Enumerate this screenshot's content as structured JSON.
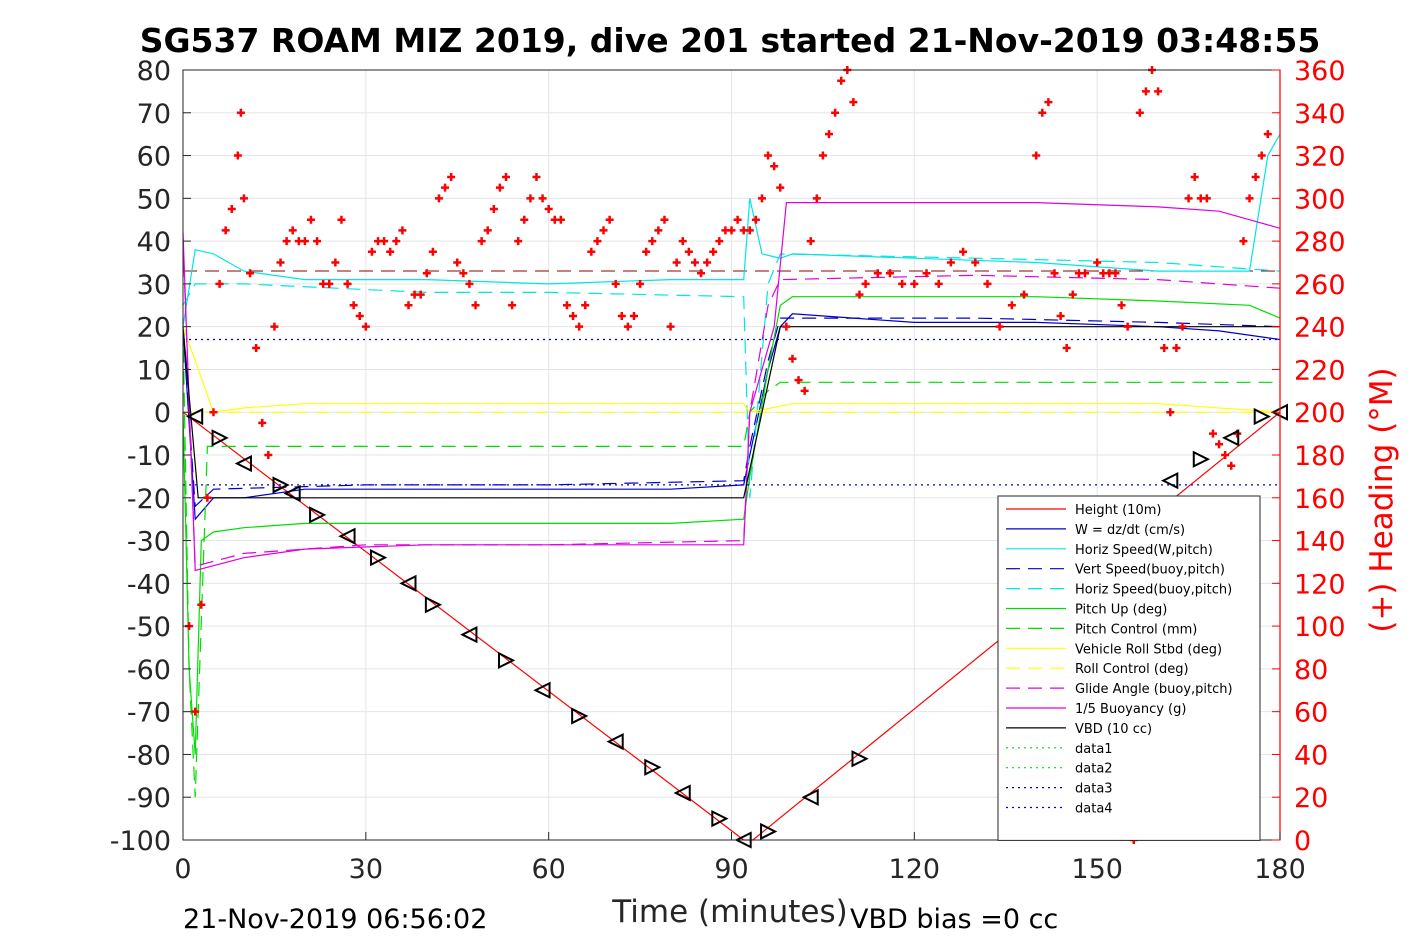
{
  "chart_data": {
    "type": "line",
    "title": "SG537 ROAM MIZ 2019, dive 201 started 21-Nov-2019 03:48:55",
    "xlabel": "Time (minutes)",
    "ylabel": "",
    "ylabel_right": "(+) Heading (°M)",
    "xlim": [
      0,
      180
    ],
    "ylim": [
      -100,
      80
    ],
    "ylim_right": [
      0,
      360
    ],
    "xticks": [
      "0",
      "30",
      "60",
      "90",
      "120",
      "150",
      "180"
    ],
    "yticks": [
      "80",
      "70",
      "60",
      "50",
      "40",
      "30",
      "20",
      "10",
      "0",
      "-10",
      "-20",
      "-30",
      "-40",
      "-50",
      "-60",
      "-70",
      "-80",
      "-90",
      "-100"
    ],
    "yticks_right": [
      "360",
      "340",
      "320",
      "300",
      "280",
      "260",
      "240",
      "220",
      "200",
      "180",
      "160",
      "140",
      "120",
      "100",
      "80",
      "60",
      "40",
      "20",
      "0"
    ],
    "grid": true,
    "legend_position": "lower-right",
    "footer_left": "21-Nov-2019 06:56:02",
    "footer_right": "VBD bias =0 cc",
    "colors": {
      "height": "#ff0000",
      "w": "#0000cc",
      "horiz": "#00e5e5",
      "pitch": "#00dd00",
      "roll": "#ffff00",
      "glide": "#e000e0",
      "vbd": "#000000",
      "heading": "#ff0000"
    },
    "series": [
      {
        "name": "Height (10m)",
        "style": "solid",
        "color": "#ff0000",
        "x": [
          0,
          92,
          93.5,
          180
        ],
        "y": [
          0,
          -100,
          -100,
          0
        ]
      },
      {
        "name": "W = dz/dt (cm/s)",
        "style": "solid",
        "color": "#0000cc",
        "x": [
          0,
          2,
          5,
          10,
          20,
          40,
          60,
          80,
          92,
          93,
          96,
          98,
          100,
          110,
          120,
          140,
          160,
          170,
          180
        ],
        "y": [
          20,
          -25,
          -20,
          -20,
          -18,
          -18,
          -18,
          -18,
          -17,
          -10,
          10,
          20,
          23,
          22,
          21,
          21,
          20,
          19,
          17
        ]
      },
      {
        "name": "Horiz Speed(W,pitch)",
        "style": "solid",
        "color": "#00e5e5",
        "x": [
          0,
          2,
          5,
          10,
          20,
          40,
          60,
          80,
          92,
          93,
          95,
          98,
          100,
          120,
          140,
          160,
          175,
          178,
          180
        ],
        "y": [
          20,
          38,
          37,
          33,
          31,
          31,
          30,
          31,
          31,
          50,
          37,
          36,
          37,
          36,
          35,
          33,
          33,
          60,
          65
        ]
      },
      {
        "name": "Vert Speed(buoy,pitch)",
        "style": "dash",
        "color": "#0000cc",
        "x": [
          0,
          2,
          5,
          30,
          60,
          92,
          93,
          96,
          98,
          130,
          160,
          180
        ],
        "y": [
          20,
          -22,
          -18,
          -17,
          -17,
          -16,
          -8,
          12,
          22,
          22,
          21,
          20
        ]
      },
      {
        "name": "Horiz Speed(buoy,pitch)",
        "style": "dash",
        "color": "#00e5e5",
        "x": [
          0,
          2,
          10,
          40,
          60,
          92,
          93,
          96,
          98,
          130,
          160,
          180
        ],
        "y": [
          25,
          30,
          30,
          28,
          28,
          27,
          -20,
          30,
          37,
          36,
          35,
          33
        ]
      },
      {
        "name": "Pitch Up (deg)",
        "style": "solid",
        "color": "#00dd00",
        "x": [
          0,
          1,
          2,
          3,
          5,
          10,
          20,
          40,
          60,
          80,
          92,
          93,
          96,
          98,
          100,
          120,
          140,
          160,
          175,
          180
        ],
        "y": [
          0,
          -60,
          -80,
          -30,
          -28,
          -27,
          -26,
          -26,
          -26,
          -26,
          -25,
          -15,
          10,
          25,
          27,
          27,
          27,
          26,
          25,
          22
        ]
      },
      {
        "name": "Pitch Control (mm)",
        "style": "dash",
        "color": "#00dd00",
        "x": [
          0,
          1,
          2,
          4,
          20,
          40,
          60,
          80,
          92,
          93,
          96,
          98,
          180
        ],
        "y": [
          20,
          -60,
          -90,
          -8,
          -8,
          -8,
          -8,
          -8,
          -8,
          0,
          5,
          7,
          7
        ]
      },
      {
        "name": "Vehicle Roll Stbd (deg)",
        "style": "solid",
        "color": "#ffff00",
        "x": [
          0,
          5,
          10,
          20,
          40,
          60,
          80,
          92,
          93,
          100,
          120,
          140,
          160,
          180
        ],
        "y": [
          20,
          0,
          1,
          2,
          2,
          2,
          2,
          2,
          0,
          2,
          2,
          2,
          2,
          0
        ]
      },
      {
        "name": "Roll Control (deg)",
        "style": "dash",
        "color": "#ffff00",
        "x": [
          0,
          5,
          90,
          93,
          180
        ],
        "y": [
          0,
          0,
          0,
          0,
          0
        ]
      },
      {
        "name": "Glide Angle (buoy,pitch)",
        "style": "dash",
        "color": "#e000e0",
        "x": [
          0,
          2,
          10,
          30,
          60,
          92,
          93,
          96,
          98,
          130,
          160,
          180
        ],
        "y": [
          40,
          -36,
          -33,
          -31,
          -31,
          -30,
          0,
          25,
          31,
          32,
          31,
          29
        ]
      },
      {
        "name": "1/5 Buoyancy (g)",
        "style": "solid",
        "color": "#e000e0",
        "x": [
          0,
          2,
          10,
          20,
          40,
          60,
          80,
          92,
          93,
          97,
          99,
          120,
          140,
          160,
          170,
          180
        ],
        "y": [
          42,
          -37,
          -34,
          -32,
          -31,
          -31,
          -31,
          -31,
          0,
          20,
          49,
          49,
          49,
          48,
          47,
          43
        ]
      },
      {
        "name": "VBD (10 cc)",
        "style": "solid",
        "color": "#000000",
        "x": [
          0,
          2.5,
          92,
          95,
          98,
          180
        ],
        "y": [
          20,
          -20,
          -20,
          0,
          20,
          20
        ]
      },
      {
        "name": "data1",
        "style": "dot",
        "color": "#00dd00",
        "x": [],
        "y": []
      },
      {
        "name": "data2",
        "style": "dot",
        "color": "#00dd00",
        "x": [],
        "y": []
      },
      {
        "name": "data3",
        "style": "dot",
        "color": "#0000cc",
        "x": [
          0,
          180
        ],
        "y": [
          17,
          17
        ]
      },
      {
        "name": "data4",
        "style": "dot",
        "color": "#0000cc",
        "x": [
          0,
          180
        ],
        "y": [
          -17,
          -17
        ]
      }
    ],
    "reference_lines": [
      {
        "color": "#8b0000",
        "style": "dash",
        "y": 33
      }
    ],
    "heading": {
      "axis": "right",
      "marker": "+",
      "color": "#ff0000",
      "x": [
        1,
        2,
        3,
        4,
        5,
        6,
        7,
        8,
        9,
        9.5,
        10,
        11,
        12,
        13,
        14,
        15,
        16,
        17,
        18,
        19,
        20,
        21,
        22,
        23,
        24,
        25,
        26,
        27,
        28,
        29,
        30,
        31,
        32,
        33,
        34,
        35,
        36,
        37,
        38,
        39,
        40,
        41,
        42,
        43,
        44,
        45,
        46,
        47,
        48,
        49,
        50,
        51,
        52,
        53,
        54,
        55,
        56,
        57,
        58,
        59,
        60,
        61,
        62,
        63,
        64,
        65,
        66,
        67,
        68,
        69,
        70,
        71,
        72,
        73,
        74,
        75,
        76,
        77,
        78,
        79,
        80,
        81,
        82,
        83,
        84,
        85,
        86,
        87,
        88,
        89,
        90,
        91,
        92,
        93,
        94,
        95,
        96,
        97,
        98,
        99,
        100,
        101,
        102,
        103,
        104,
        105,
        106,
        107,
        108,
        109,
        110,
        111,
        112,
        114,
        116,
        118,
        120,
        122,
        124,
        126,
        128,
        130,
        132,
        134,
        136,
        138,
        140,
        141,
        142,
        143,
        144,
        145,
        146,
        147,
        148,
        150,
        151,
        152,
        153,
        154,
        155,
        156,
        157,
        158,
        159,
        160,
        161,
        162,
        163,
        164,
        165,
        166,
        167,
        168,
        169,
        170,
        171,
        172,
        173,
        174,
        175,
        176,
        177,
        178
      ],
      "y": [
        100,
        60,
        110,
        160,
        200,
        260,
        285,
        295,
        320,
        340,
        300,
        265,
        230,
        195,
        180,
        240,
        270,
        280,
        285,
        280,
        280,
        290,
        280,
        260,
        260,
        270,
        290,
        260,
        250,
        245,
        240,
        275,
        280,
        280,
        275,
        280,
        285,
        250,
        255,
        255,
        265,
        275,
        300,
        305,
        310,
        270,
        265,
        260,
        250,
        280,
        285,
        295,
        305,
        310,
        250,
        280,
        290,
        300,
        310,
        300,
        295,
        290,
        290,
        250,
        245,
        240,
        250,
        275,
        280,
        285,
        290,
        260,
        245,
        240,
        245,
        260,
        275,
        280,
        285,
        290,
        240,
        270,
        280,
        275,
        270,
        265,
        270,
        275,
        280,
        285,
        285,
        290,
        285,
        285,
        290,
        300,
        320,
        315,
        305,
        240,
        225,
        215,
        210,
        280,
        300,
        320,
        330,
        340,
        355,
        360,
        345,
        255,
        260,
        265,
        265,
        260,
        260,
        265,
        260,
        270,
        275,
        270,
        260,
        240,
        250,
        255,
        320,
        340,
        345,
        265,
        245,
        230,
        255,
        265,
        265,
        270,
        265,
        265,
        265,
        250,
        240,
        0,
        340,
        350,
        360,
        350,
        230,
        200,
        230,
        240,
        300,
        310,
        300,
        300,
        190,
        185,
        180,
        175,
        190,
        280,
        300,
        310,
        320,
        330
      ]
    },
    "ticks_markers": {
      "type": "triangle-marker",
      "color": "#000000",
      "x": [
        2,
        6,
        10,
        16,
        18,
        22,
        27,
        32,
        37,
        41,
        47,
        53,
        59,
        65,
        71,
        77,
        82,
        88,
        92,
        96,
        103,
        111,
        162,
        167,
        172,
        177,
        180
      ],
      "y": [
        -1,
        -6,
        -12,
        -17,
        -19,
        -24,
        -29,
        -34,
        -40,
        -45,
        -52,
        -58,
        -65,
        -71,
        -77,
        -83,
        -89,
        -95,
        -100,
        -98,
        -90,
        -81,
        -16,
        -11,
        -6,
        -1,
        0
      ]
    }
  }
}
